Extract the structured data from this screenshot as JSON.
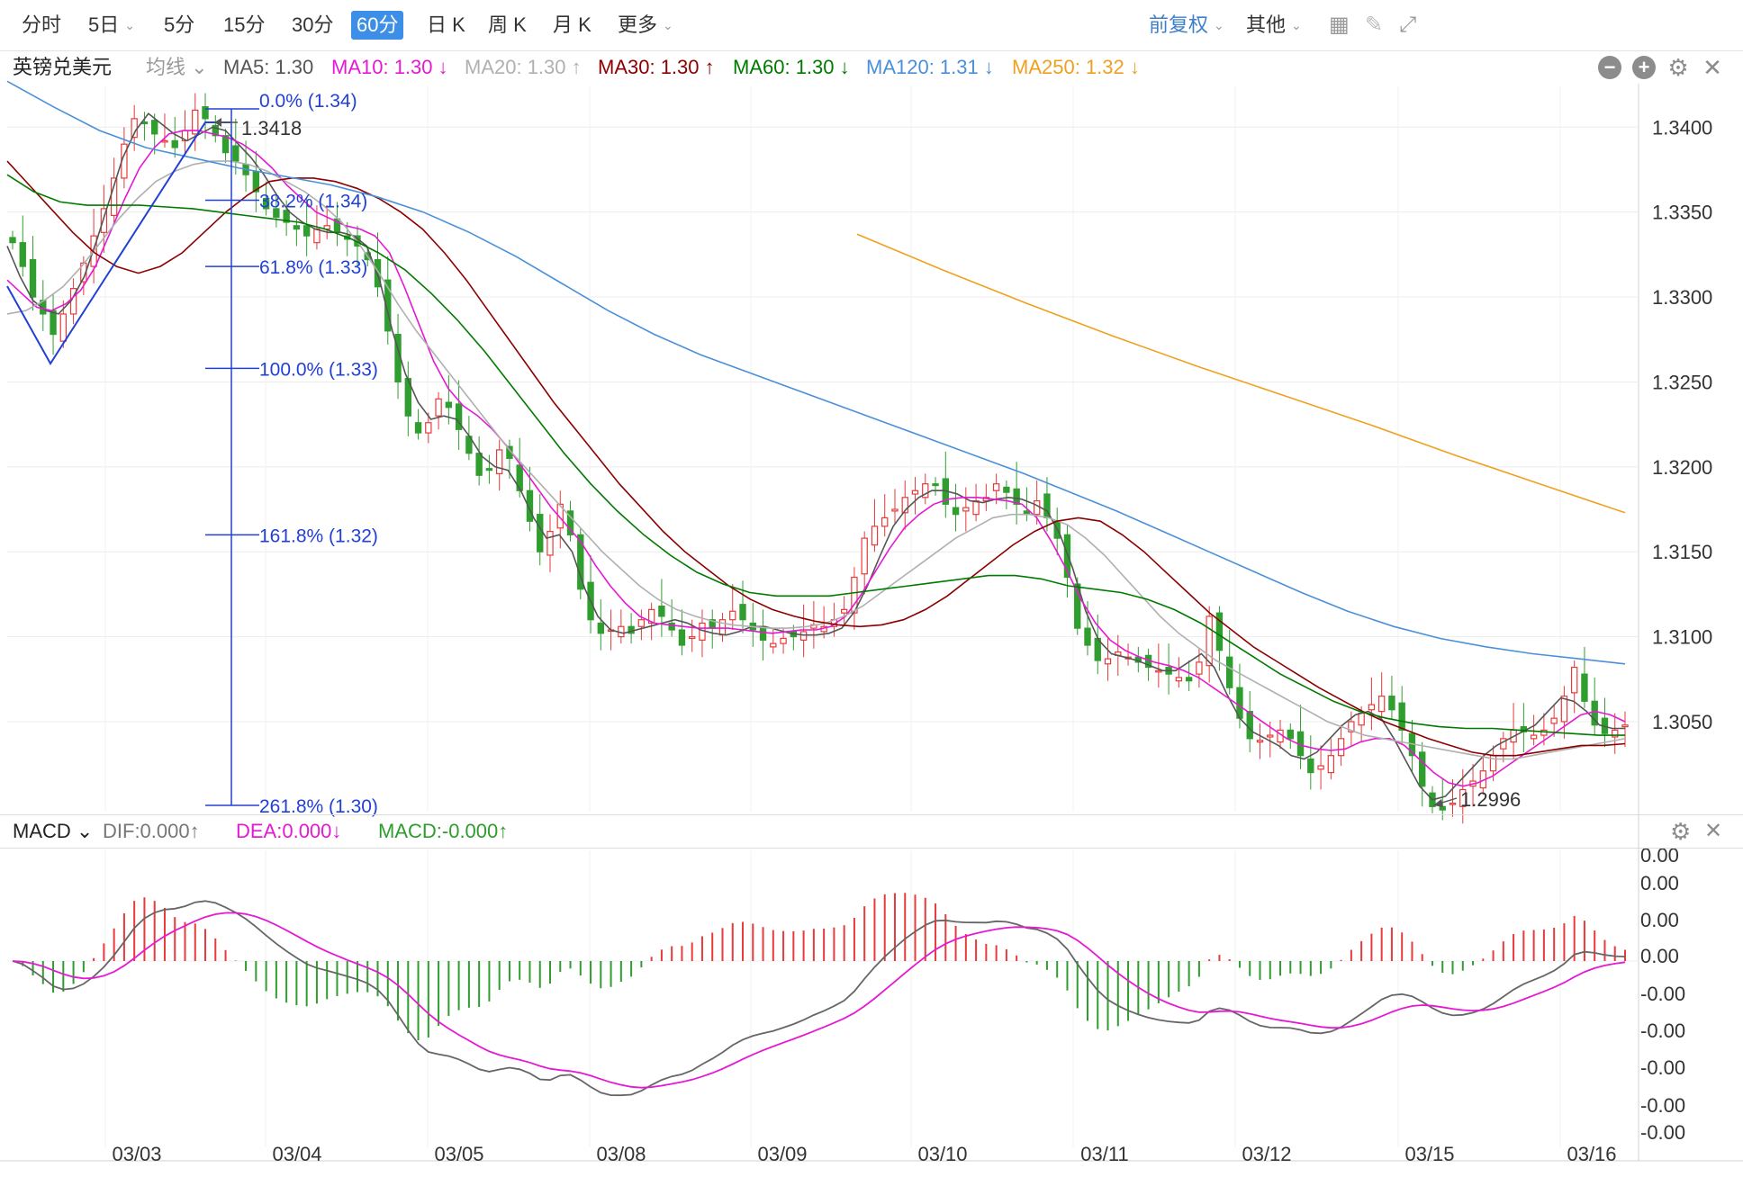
{
  "toolbar": {
    "periods": [
      "分时",
      "5日",
      "5分",
      "15分",
      "30分",
      "60分",
      "日 K",
      "周 K",
      "月 K",
      "更多"
    ],
    "active_period": "60分",
    "adjust": "前复权",
    "other": "其他"
  },
  "ma_bar": {
    "symbol": "英镑兑美元",
    "ma_type": "均线",
    "items": [
      {
        "label": "MA5: 1.30",
        "color": "#555555",
        "arrow": ""
      },
      {
        "label": "MA10: 1.30",
        "color": "#e619d2",
        "arrow": "↓"
      },
      {
        "label": "MA20: 1.30",
        "color": "#b0b0b0",
        "arrow": "↑"
      },
      {
        "label": "MA30: 1.30",
        "color": "#8b0000",
        "arrow": "↑"
      },
      {
        "label": "MA60: 1.30",
        "color": "#007a00",
        "arrow": "↓"
      },
      {
        "label": "MA120: 1.31",
        "color": "#4a90d9",
        "arrow": "↓"
      },
      {
        "label": "MA250: 1.32",
        "color": "#f0a020",
        "arrow": "↓"
      }
    ]
  },
  "macd_bar": {
    "title": "MACD",
    "dif": "DIF:0.000↑",
    "dea": "DEA:0.000↓",
    "macd": "MACD:-0.000↑"
  },
  "fib_labels": [
    "0.0% (1.34)",
    "38.2% (1.34)",
    "61.8% (1.33)",
    "100.0% (1.33)",
    "161.8% (1.32)",
    "261.8% (1.30)"
  ],
  "annotations": {
    "high": "1.3418",
    "low": "1.2996"
  },
  "macd_axis_labels": [
    "0.00",
    "0.00",
    "0.00",
    "0.00",
    "-0.00",
    "-0.00",
    "-0.00",
    "-0.00",
    "-0.00"
  ],
  "chart_data": {
    "type": "candlestick",
    "title": "英镑兑美元",
    "y_ticks": [
      "1.3400",
      "1.3350",
      "1.3300",
      "1.3250",
      "1.3200",
      "1.3150",
      "1.3100",
      "1.3050"
    ],
    "ylim": [
      1.2997,
      1.3424
    ],
    "x_labels": [
      "03/03",
      "03/04",
      "03/05",
      "03/08",
      "03/09",
      "03/10",
      "03/11",
      "03/12",
      "03/15",
      "03/16"
    ],
    "close_series": [
      1.3332,
      1.3318,
      1.33,
      1.329,
      1.3278,
      1.329,
      1.3305,
      1.332,
      1.3336,
      1.3352,
      1.337,
      1.339,
      1.3405,
      1.3402,
      1.3396,
      1.3392,
      1.3388,
      1.3398,
      1.341,
      1.3405,
      1.3395,
      1.3385,
      1.338,
      1.3372,
      1.3362,
      1.3352,
      1.3347,
      1.3344,
      1.334,
      1.3336,
      1.334,
      1.3342,
      1.3338,
      1.3334,
      1.333,
      1.3322,
      1.3306,
      1.328,
      1.325,
      1.323,
      1.322,
      1.3226,
      1.324,
      1.3235,
      1.3222,
      1.3208,
      1.3195,
      1.3198,
      1.321,
      1.3205,
      1.3186,
      1.3168,
      1.315,
      1.3162,
      1.3178,
      1.316,
      1.3128,
      1.311,
      1.3102,
      1.3104,
      1.3106,
      1.3102,
      1.311,
      1.3116,
      1.3112,
      1.3104,
      1.3095,
      1.31,
      1.3108,
      1.3105,
      1.311,
      1.3115,
      1.311,
      1.3104,
      1.3098,
      1.3096,
      1.3099,
      1.31,
      1.3103,
      1.3107,
      1.3106,
      1.311,
      1.3116,
      1.3135,
      1.3158,
      1.3165,
      1.317,
      1.3175,
      1.3182,
      1.3186,
      1.319,
      1.3189,
      1.3178,
      1.3172,
      1.3176,
      1.318,
      1.3182,
      1.319,
      1.3185,
      1.3178,
      1.3172,
      1.318,
      1.317,
      1.3158,
      1.3135,
      1.3105,
      1.3095,
      1.3086,
      1.3087,
      1.3091,
      1.3088,
      1.3085,
      1.3082,
      1.308,
      1.3078,
      1.3076,
      1.3074,
      1.3085,
      1.3112,
      1.3092,
      1.307,
      1.3052,
      1.304,
      1.3039,
      1.3042,
      1.3045,
      1.304,
      1.303,
      1.302,
      1.3024,
      1.303,
      1.304,
      1.305,
      1.3055,
      1.306,
      1.3065,
      1.3057,
      1.3045,
      1.303,
      1.3012,
      1.3,
      1.2998,
      1.3002,
      1.301,
      1.3015,
      1.3021,
      1.303,
      1.304,
      1.3045,
      1.3044,
      1.3042,
      1.3045,
      1.3052,
      1.3065,
      1.3082,
      1.3062,
      1.3048,
      1.3043,
      1.3045,
      1.3048
    ],
    "ma_series": [
      {
        "name": "MA5",
        "color": "#555555",
        "values": [
          1.333,
          1.3312,
          1.3298,
          1.3292,
          1.329,
          1.3298,
          1.3312,
          1.3334,
          1.3358,
          1.3382,
          1.3398,
          1.3408,
          1.3402,
          1.3396,
          1.3392,
          1.3396,
          1.34,
          1.3398,
          1.339,
          1.3382,
          1.3372,
          1.336,
          1.335,
          1.3344,
          1.334,
          1.3338,
          1.3338,
          1.3336,
          1.333,
          1.331,
          1.328,
          1.3255,
          1.3238,
          1.3228,
          1.323,
          1.3228,
          1.3218,
          1.3206,
          1.32,
          1.3198,
          1.3186,
          1.317,
          1.3158,
          1.316,
          1.315,
          1.3128,
          1.3112,
          1.3104,
          1.3102,
          1.3104,
          1.3106,
          1.3108,
          1.311,
          1.3108,
          1.3104,
          1.3102,
          1.3101,
          1.3103,
          1.3106,
          1.3106,
          1.3104,
          1.3102,
          1.3101,
          1.3101,
          1.3102,
          1.3105,
          1.3115,
          1.313,
          1.3148,
          1.3165,
          1.3175,
          1.3182,
          1.3186,
          1.3186,
          1.3184,
          1.318,
          1.3179,
          1.3181,
          1.3182,
          1.3181,
          1.3178,
          1.3174,
          1.316,
          1.314,
          1.3115,
          1.3098,
          1.309,
          1.3088,
          1.3086,
          1.3083,
          1.308,
          1.308,
          1.3085,
          1.309,
          1.3082,
          1.3066,
          1.3052,
          1.3044,
          1.304,
          1.3036,
          1.303,
          1.3028,
          1.3032,
          1.304,
          1.3048,
          1.3054,
          1.3056,
          1.3052,
          1.304,
          1.3026,
          1.3012,
          1.3004,
          1.3006,
          1.3014,
          1.3022,
          1.303,
          1.3036,
          1.304,
          1.3044,
          1.3048,
          1.3056,
          1.3064,
          1.3062,
          1.3056,
          1.3048,
          1.3046,
          1.3046
        ]
      },
      {
        "name": "MA10",
        "color": "#e619d2",
        "values": [
          1.331,
          1.3302,
          1.3294,
          1.3292,
          1.3296,
          1.3304,
          1.3318,
          1.3338,
          1.3358,
          1.3376,
          1.3388,
          1.3396,
          1.3398,
          1.3398,
          1.3396,
          1.3394,
          1.339,
          1.3384,
          1.3376,
          1.3366,
          1.3358,
          1.335,
          1.3346,
          1.3342,
          1.334,
          1.3336,
          1.3326,
          1.3306,
          1.3284,
          1.3262,
          1.3246,
          1.3236,
          1.323,
          1.3222,
          1.3212,
          1.32,
          1.3188,
          1.3176,
          1.3166,
          1.3156,
          1.3142,
          1.313,
          1.312,
          1.3112,
          1.3108,
          1.3107,
          1.3106,
          1.3105,
          1.3105,
          1.3105,
          1.3104,
          1.3103,
          1.3102,
          1.3103,
          1.3104,
          1.3104,
          1.3106,
          1.3112,
          1.3124,
          1.3138,
          1.3152,
          1.3164,
          1.3172,
          1.3178,
          1.3181,
          1.3182,
          1.3182,
          1.3181,
          1.318,
          1.3178,
          1.317,
          1.3156,
          1.314,
          1.3122,
          1.3108,
          1.3098,
          1.3092,
          1.3088,
          1.3085,
          1.3083,
          1.308,
          1.3076,
          1.307,
          1.3064,
          1.3058,
          1.3052,
          1.3046,
          1.304,
          1.3036,
          1.3034,
          1.3033,
          1.3034,
          1.3038,
          1.304,
          1.304,
          1.3036,
          1.3028,
          1.302,
          1.3014,
          1.3012,
          1.3014,
          1.3018,
          1.3024,
          1.303,
          1.3036,
          1.3042,
          1.3048,
          1.3054,
          1.3056,
          1.3054,
          1.305
        ]
      },
      {
        "name": "MA20",
        "color": "#b0b0b0",
        "values": [
          1.329,
          1.3292,
          1.3298,
          1.3306,
          1.3318,
          1.3332,
          1.3346,
          1.3358,
          1.3368,
          1.3374,
          1.3378,
          1.338,
          1.338,
          1.3378,
          1.3374,
          1.3368,
          1.3362,
          1.3354,
          1.3344,
          1.333,
          1.3314,
          1.3296,
          1.328,
          1.3266,
          1.3252,
          1.3238,
          1.3224,
          1.321,
          1.3198,
          1.3186,
          1.3174,
          1.3162,
          1.315,
          1.314,
          1.313,
          1.3122,
          1.3116,
          1.3112,
          1.3109,
          1.3107,
          1.3106,
          1.3105,
          1.3105,
          1.3106,
          1.3108,
          1.3112,
          1.3118,
          1.3126,
          1.3134,
          1.3142,
          1.315,
          1.3158,
          1.3164,
          1.317,
          1.3172,
          1.3172,
          1.317,
          1.3166,
          1.3158,
          1.3148,
          1.3136,
          1.3124,
          1.3112,
          1.3102,
          1.3094,
          1.3086,
          1.308,
          1.3074,
          1.3068,
          1.3062,
          1.3056,
          1.305,
          1.3046,
          1.3042,
          1.304,
          1.3038,
          1.3036,
          1.3034,
          1.3032,
          1.303,
          1.3028,
          1.3028,
          1.303,
          1.3032,
          1.3034,
          1.3036,
          1.3038,
          1.304
        ]
      },
      {
        "name": "MA30",
        "color": "#8b0000",
        "values": [
          1.338,
          1.3366,
          1.3352,
          1.3338,
          1.3326,
          1.3318,
          1.3314,
          1.3318,
          1.3326,
          1.3338,
          1.335,
          1.336,
          1.3368,
          1.337,
          1.337,
          1.3368,
          1.3364,
          1.3358,
          1.335,
          1.334,
          1.3326,
          1.331,
          1.3292,
          1.3274,
          1.3256,
          1.3238,
          1.3222,
          1.3206,
          1.319,
          1.3176,
          1.3162,
          1.315,
          1.314,
          1.313,
          1.3122,
          1.3116,
          1.3112,
          1.3109,
          1.3107,
          1.3106,
          1.3107,
          1.311,
          1.3116,
          1.3124,
          1.3134,
          1.3144,
          1.3154,
          1.3162,
          1.3168,
          1.317,
          1.3168,
          1.316,
          1.315,
          1.3138,
          1.3126,
          1.3114,
          1.3104,
          1.3094,
          1.3086,
          1.3078,
          1.307,
          1.3063,
          1.3056,
          1.305,
          1.3045,
          1.304,
          1.3036,
          1.3032,
          1.303,
          1.303,
          1.3032,
          1.3034,
          1.3036,
          1.3036,
          1.3037
        ]
      },
      {
        "name": "MA60",
        "color": "#007a00",
        "values": [
          1.3372,
          1.3362,
          1.3356,
          1.3354,
          1.3354,
          1.3354,
          1.3353,
          1.3352,
          1.335,
          1.3348,
          1.3346,
          1.3344,
          1.334,
          1.3334,
          1.3326,
          1.3316,
          1.3302,
          1.3286,
          1.3268,
          1.3248,
          1.3228,
          1.3208,
          1.319,
          1.3174,
          1.316,
          1.3148,
          1.3138,
          1.3131,
          1.3126,
          1.3124,
          1.3124,
          1.3124,
          1.3126,
          1.3128,
          1.313,
          1.3132,
          1.3134,
          1.3136,
          1.3136,
          1.3134,
          1.313,
          1.3128,
          1.3126,
          1.3122,
          1.3116,
          1.3108,
          1.3098,
          1.3088,
          1.3078,
          1.307,
          1.3062,
          1.3056,
          1.3052,
          1.3049,
          1.3047,
          1.3046,
          1.3046,
          1.3045,
          1.3044,
          1.3043,
          1.3042,
          1.3042
        ]
      },
      {
        "name": "MA120",
        "color": "#4a90d9",
        "values": [
          1.3427,
          1.3412,
          1.3398,
          1.3388,
          1.3382,
          1.3376,
          1.3371,
          1.3366,
          1.3359,
          1.335,
          1.3338,
          1.3324,
          1.3308,
          1.3292,
          1.3278,
          1.3266,
          1.3256,
          1.3246,
          1.3236,
          1.3226,
          1.3216,
          1.3206,
          1.3196,
          1.3185,
          1.3174,
          1.3162,
          1.315,
          1.3138,
          1.3126,
          1.3115,
          1.3106,
          1.3099,
          1.3094,
          1.309,
          1.3087,
          1.3084
        ]
      },
      {
        "name": "MA250",
        "color": "#f0a020",
        "values": [
          1.3337,
          1.3316,
          1.3296,
          1.3277,
          1.3259,
          1.3242,
          1.3225,
          1.3207,
          1.319,
          1.3173
        ]
      }
    ]
  }
}
